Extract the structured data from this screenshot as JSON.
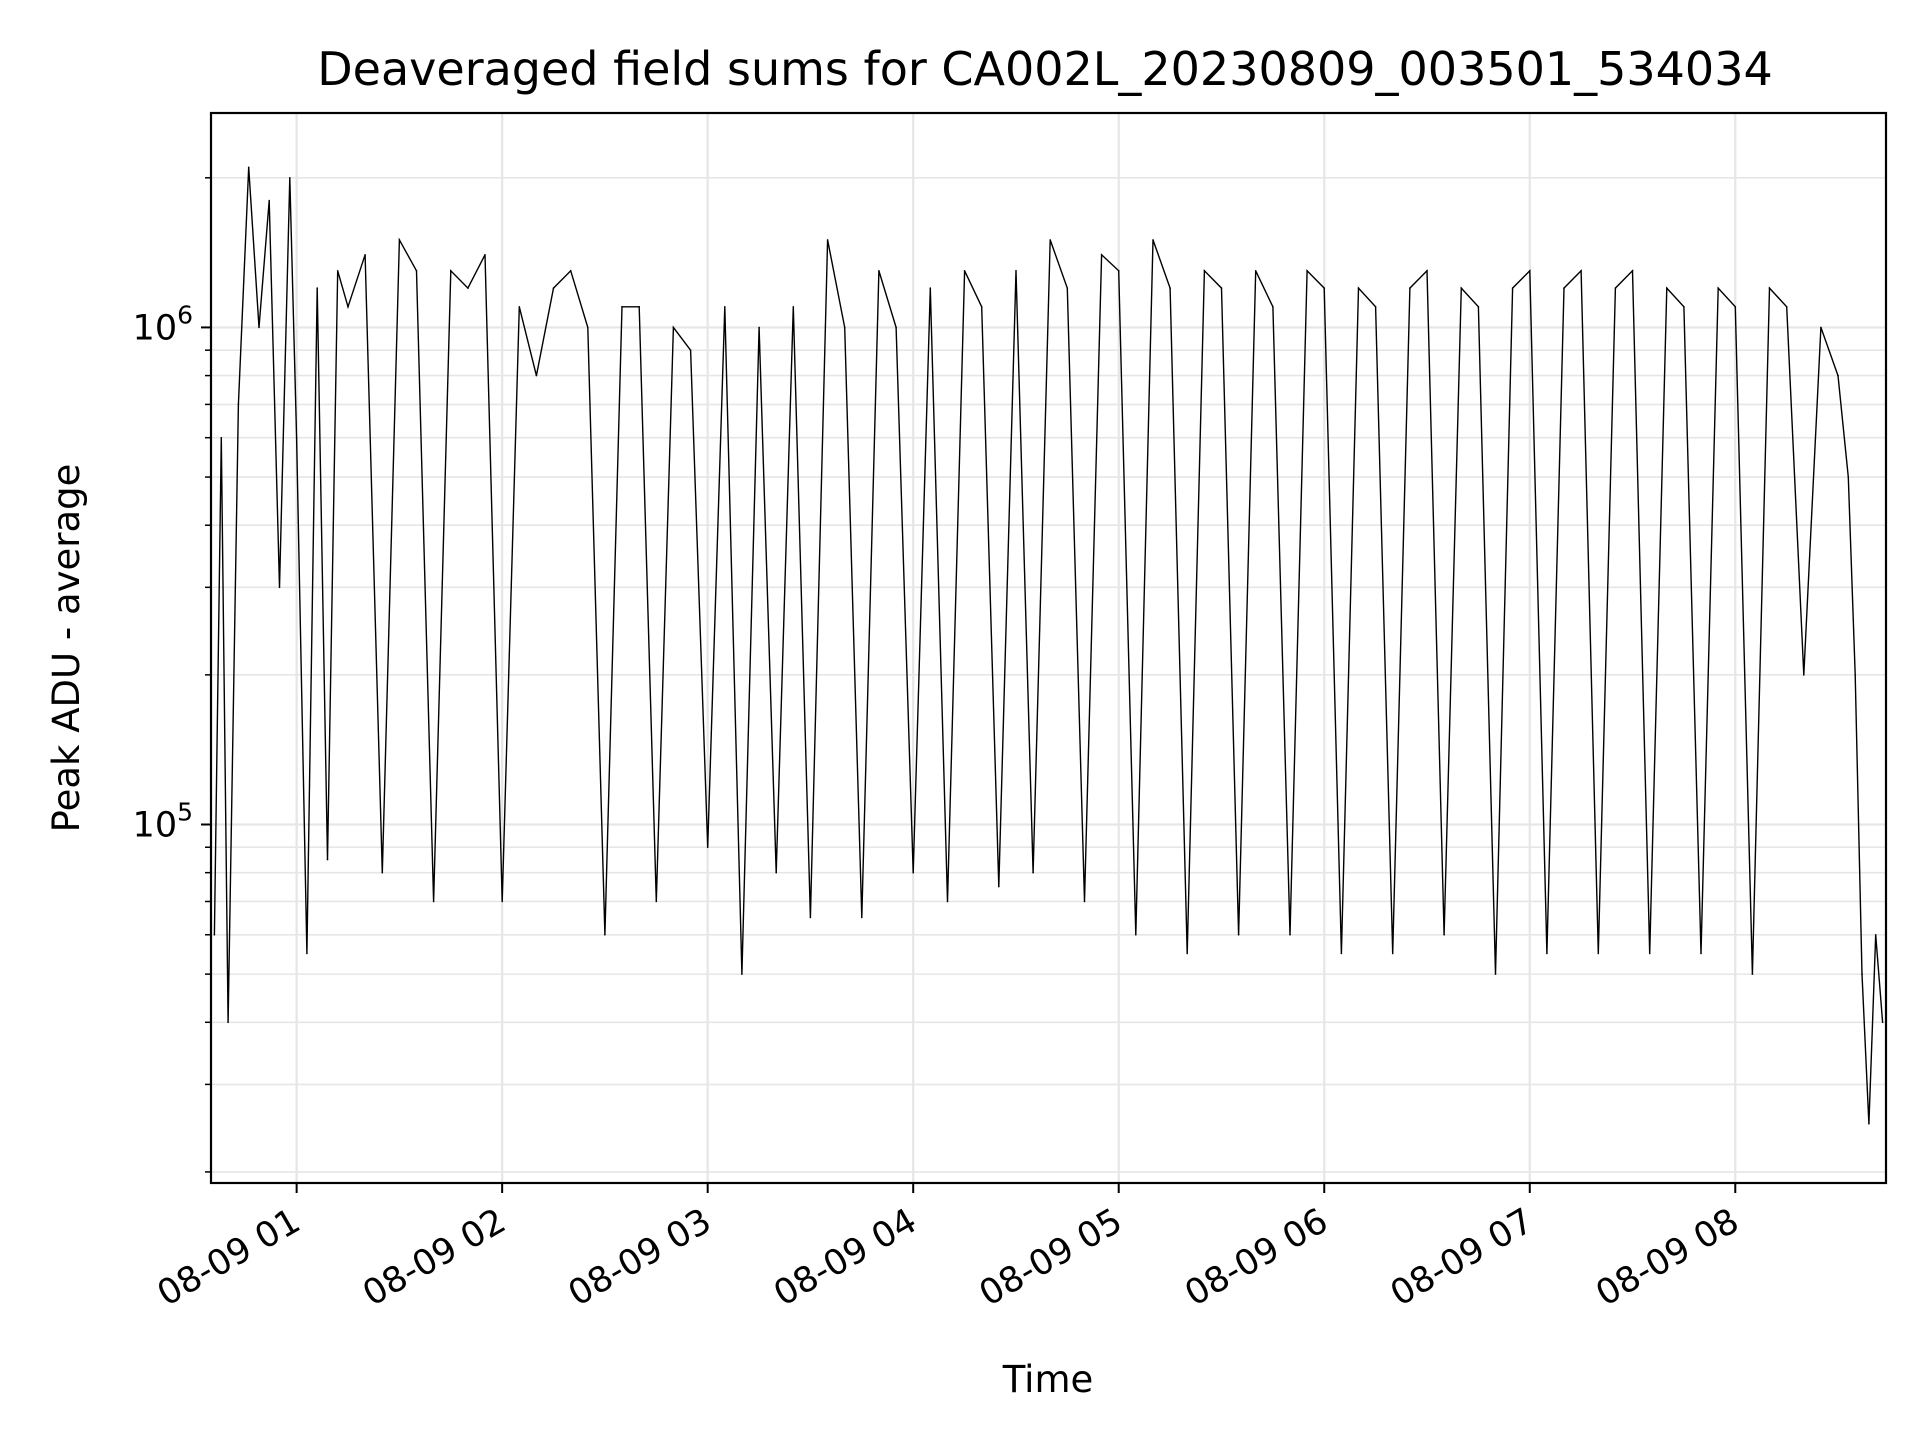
{
  "chart_data": {
    "type": "line",
    "title": "Deaveraged field sums for CA002L_20230809_003501_534034",
    "xlabel": "Time",
    "ylabel": "Peak ADU - average",
    "x_ticks": [
      "08-09 01",
      "08-09 02",
      "08-09 03",
      "08-09 04",
      "08-09 05",
      "08-09 06",
      "08-09 07",
      "08-09 08"
    ],
    "y_ticks": [
      {
        "label": "10",
        "exp": "5",
        "value": 100000
      },
      {
        "label": "10",
        "exp": "6",
        "value": 1000000
      }
    ],
    "xlim": [
      "2023-08-09 00:35",
      "2023-08-09 08:44"
    ],
    "ylim": [
      19000,
      2700000
    ],
    "yscale": "log",
    "grid": true,
    "line_color": "#000000",
    "grid_color": "#e6e6e6",
    "series": [
      {
        "x": [
          "2023-08-09 00:36",
          "2023-08-09 00:38",
          "2023-08-09 00:40",
          "2023-08-09 00:43",
          "2023-08-09 00:46",
          "2023-08-09 00:49",
          "2023-08-09 00:52",
          "2023-08-09 00:55",
          "2023-08-09 00:58",
          "2023-08-09 01:00",
          "2023-08-09 01:03",
          "2023-08-09 01:06",
          "2023-08-09 01:09",
          "2023-08-09 01:12",
          "2023-08-09 01:15",
          "2023-08-09 01:20",
          "2023-08-09 01:25",
          "2023-08-09 01:30",
          "2023-08-09 01:35",
          "2023-08-09 01:40",
          "2023-08-09 01:45",
          "2023-08-09 01:50",
          "2023-08-09 01:55",
          "2023-08-09 02:00",
          "2023-08-09 02:05",
          "2023-08-09 02:10",
          "2023-08-09 02:15",
          "2023-08-09 02:20",
          "2023-08-09 02:25",
          "2023-08-09 02:30",
          "2023-08-09 02:35",
          "2023-08-09 02:40",
          "2023-08-09 02:45",
          "2023-08-09 02:50",
          "2023-08-09 02:55",
          "2023-08-09 03:00",
          "2023-08-09 03:05",
          "2023-08-09 03:10",
          "2023-08-09 03:15",
          "2023-08-09 03:20",
          "2023-08-09 03:25",
          "2023-08-09 03:30",
          "2023-08-09 03:35",
          "2023-08-09 03:40",
          "2023-08-09 03:45",
          "2023-08-09 03:50",
          "2023-08-09 03:55",
          "2023-08-09 04:00",
          "2023-08-09 04:05",
          "2023-08-09 04:10",
          "2023-08-09 04:15",
          "2023-08-09 04:20",
          "2023-08-09 04:25",
          "2023-08-09 04:30",
          "2023-08-09 04:35",
          "2023-08-09 04:40",
          "2023-08-09 04:45",
          "2023-08-09 04:50",
          "2023-08-09 04:55",
          "2023-08-09 05:00",
          "2023-08-09 05:05",
          "2023-08-09 05:10",
          "2023-08-09 05:15",
          "2023-08-09 05:20",
          "2023-08-09 05:25",
          "2023-08-09 05:30",
          "2023-08-09 05:35",
          "2023-08-09 05:40",
          "2023-08-09 05:45",
          "2023-08-09 05:50",
          "2023-08-09 05:55",
          "2023-08-09 06:00",
          "2023-08-09 06:05",
          "2023-08-09 06:10",
          "2023-08-09 06:15",
          "2023-08-09 06:20",
          "2023-08-09 06:25",
          "2023-08-09 06:30",
          "2023-08-09 06:35",
          "2023-08-09 06:40",
          "2023-08-09 06:45",
          "2023-08-09 06:50",
          "2023-08-09 06:55",
          "2023-08-09 07:00",
          "2023-08-09 07:05",
          "2023-08-09 07:10",
          "2023-08-09 07:15",
          "2023-08-09 07:20",
          "2023-08-09 07:25",
          "2023-08-09 07:30",
          "2023-08-09 07:35",
          "2023-08-09 07:40",
          "2023-08-09 07:45",
          "2023-08-09 07:50",
          "2023-08-09 07:55",
          "2023-08-09 08:00",
          "2023-08-09 08:05",
          "2023-08-09 08:10",
          "2023-08-09 08:15",
          "2023-08-09 08:20",
          "2023-08-09 08:25",
          "2023-08-09 08:30",
          "2023-08-09 08:33",
          "2023-08-09 08:35",
          "2023-08-09 08:37",
          "2023-08-09 08:39",
          "2023-08-09 08:41",
          "2023-08-09 08:43"
        ],
        "values": [
          60000,
          600000,
          40000,
          700000,
          2100000,
          1000000,
          1800000,
          300000,
          2000000,
          600000,
          55000,
          1200000,
          85000,
          1300000,
          1100000,
          1400000,
          80000,
          1500000,
          1300000,
          70000,
          1300000,
          1200000,
          1400000,
          70000,
          1100000,
          800000,
          1200000,
          1300000,
          1000000,
          60000,
          1100000,
          1100000,
          70000,
          1000000,
          900000,
          90000,
          1100000,
          50000,
          1000000,
          80000,
          1100000,
          65000,
          1500000,
          1000000,
          65000,
          1300000,
          1000000,
          80000,
          1200000,
          70000,
          1300000,
          1100000,
          75000,
          1300000,
          80000,
          1500000,
          1200000,
          70000,
          1400000,
          1300000,
          60000,
          1500000,
          1200000,
          55000,
          1300000,
          1200000,
          60000,
          1300000,
          1100000,
          60000,
          1300000,
          1200000,
          55000,
          1200000,
          1100000,
          55000,
          1200000,
          1300000,
          60000,
          1200000,
          1100000,
          50000,
          1200000,
          1300000,
          55000,
          1200000,
          1300000,
          55000,
          1200000,
          1300000,
          55000,
          1200000,
          1100000,
          55000,
          1200000,
          1100000,
          50000,
          1200000,
          1100000,
          200000,
          1000000,
          800000,
          500000,
          200000,
          50000,
          25000,
          60000,
          40000
        ]
      }
    ]
  }
}
